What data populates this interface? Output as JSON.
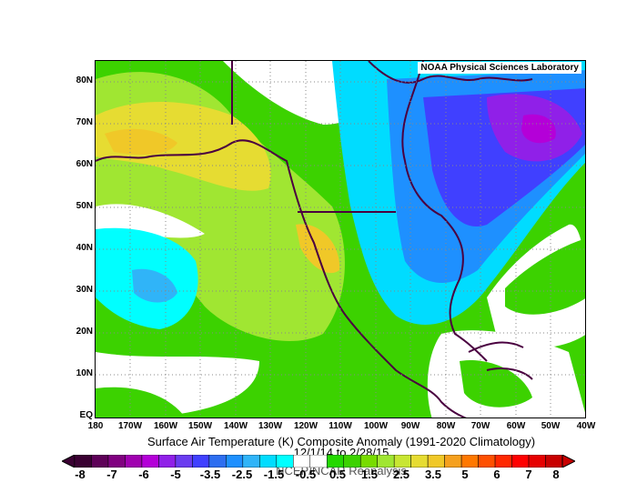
{
  "credit": "NOAA Physical Sciences Laboratory",
  "title": "Surface Air Temperature (K) Composite Anomaly (1991-2020 Climatology)",
  "period": "12/1/14  to 2/28/15",
  "source": "NCEP/NCAR Reanalysis",
  "y_axis_labels": [
    "80N",
    "70N",
    "60N",
    "50N",
    "40N",
    "30N",
    "20N",
    "10N",
    "EQ"
  ],
  "x_axis_labels": [
    "180",
    "170W",
    "160W",
    "150W",
    "140W",
    "130W",
    "120W",
    "110W",
    "100W",
    "90W",
    "80W",
    "70W",
    "60W",
    "50W",
    "40W"
  ],
  "colorbar_labels": [
    "-8",
    "-7",
    "-6",
    "-5",
    "-3.5",
    "-2.5",
    "-1.5",
    "-0.5",
    "0.5",
    "1.5",
    "2.5",
    "3.5",
    "5",
    "6",
    "7",
    "8"
  ],
  "colorbar_colors": [
    "#3a0032",
    "#5e0058",
    "#800080",
    "#a000b0",
    "#b400d8",
    "#9020e8",
    "#6a3cf0",
    "#4040ff",
    "#2d6ef0",
    "#1e90ff",
    "#30b4f8",
    "#00dcff",
    "#00ffff",
    "#ffffff",
    "#ffffff",
    "#24d800",
    "#3cd200",
    "#78dc00",
    "#a0e632",
    "#c8e632",
    "#e6dc32",
    "#f0c828",
    "#f5a01e",
    "#ff7800",
    "#ff5000",
    "#ff2800",
    "#ff0000",
    "#e60000",
    "#c80000"
  ]
}
